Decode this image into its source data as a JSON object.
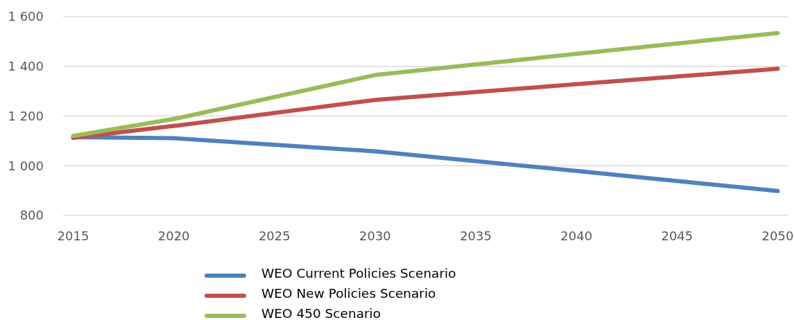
{
  "chart_data": {
    "type": "line",
    "x": [
      2015,
      2020,
      2030,
      2040,
      2050
    ],
    "series": [
      {
        "name": "WEO Current Policies Scenario",
        "color": "#4f81bd",
        "values": [
          1115,
          1111,
          1058,
          979,
          898
        ]
      },
      {
        "name": "WEO New Policies Scenario",
        "color": "#c0504d",
        "values": [
          1112,
          1160,
          1265,
          1328,
          1390
        ]
      },
      {
        "name": "WEO 450 Scenario",
        "color": "#9bbb59",
        "values": [
          1120,
          1188,
          1365,
          1450,
          1534
        ]
      }
    ],
    "xlim": [
      2014.5,
      2050.5
    ],
    "xticks": [
      2015,
      2020,
      2025,
      2030,
      2035,
      2040,
      2045,
      2050
    ],
    "ylim": [
      800,
      1600
    ],
    "yticks": [
      800,
      {
        "value": 1000,
        "label": "1 000"
      },
      {
        "value": 1200,
        "label": "1 200"
      },
      {
        "value": 1400,
        "label": "1 400"
      },
      {
        "value": 1600,
        "label": "1 600"
      }
    ],
    "grid": "y",
    "legend": "bottom",
    "line_style": "solid"
  }
}
